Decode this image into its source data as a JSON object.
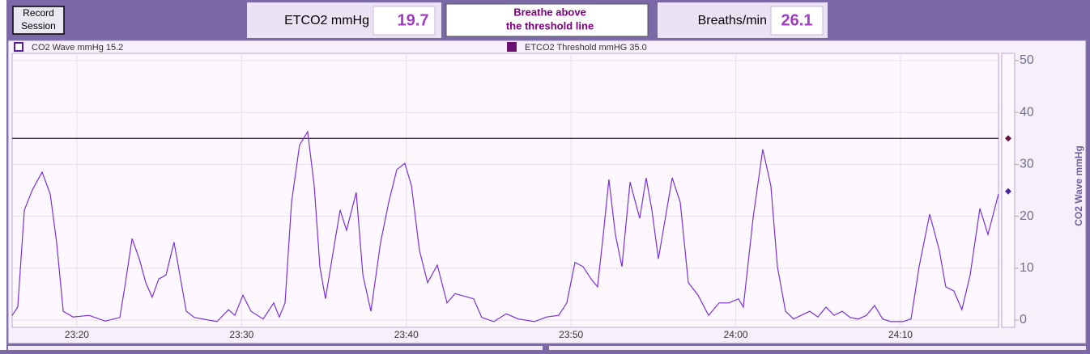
{
  "header": {
    "record_button": [
      "Record",
      "Session"
    ],
    "etco2": {
      "label": "ETCO2 mmHg",
      "value": 19.7
    },
    "message": [
      "Breathe above",
      "the threshold line"
    ],
    "breaths": {
      "label": "Breaths/min",
      "value": 26.1
    }
  },
  "chart_data": {
    "type": "line",
    "ylabel": "CO2 Wave mmHg",
    "legend": [
      "CO2 Wave mmHg 15.2",
      "ETCO2 Threshold mmHG 35.0"
    ],
    "legend_colors": [
      "#5b1aa8",
      "#6a1070"
    ],
    "threshold": 35,
    "threshold_color": "#4a1050",
    "side_markers": [
      35,
      24.8
    ],
    "side_marker_colors": [
      "#6a1040",
      "#4a2aa0"
    ],
    "xlim": [
      1396.07,
      1455.95
    ],
    "xticks": [
      {
        "value": 1400,
        "label": "23:20"
      },
      {
        "value": 1410,
        "label": "23:30"
      },
      {
        "value": 1420,
        "label": "23:40"
      },
      {
        "value": 1430,
        "label": "23:50"
      },
      {
        "value": 1440,
        "label": "24:00"
      },
      {
        "value": 1450,
        "label": "24:10"
      }
    ],
    "ylim": [
      -1.4,
      51.4
    ],
    "yticks": [
      0,
      10,
      20,
      30,
      40,
      50
    ],
    "grid": true,
    "series": [
      {
        "name": "CO2 Wave mmHg",
        "color": "#7b2fe0",
        "x": [
          1396.07,
          1396.41,
          1396.81,
          1397.3,
          1397.89,
          1398.38,
          1398.77,
          1399.17,
          1399.76,
          1400.74,
          1401.72,
          1402.61,
          1402.95,
          1403.35,
          1403.79,
          1404.18,
          1404.57,
          1404.97,
          1405.41,
          1405.9,
          1406.25,
          1406.64,
          1407.13,
          1408.51,
          1409.2,
          1409.59,
          1410.08,
          1410.57,
          1411.31,
          1411.95,
          1412.29,
          1412.64,
          1413.03,
          1413.52,
          1414.01,
          1414.41,
          1414.75,
          1415.09,
          1415.49,
          1415.98,
          1416.37,
          1416.96,
          1417.36,
          1417.85,
          1418.44,
          1418.93,
          1419.42,
          1419.91,
          1420.31,
          1420.8,
          1421.29,
          1421.88,
          1422.47,
          1422.96,
          1424.09,
          1424.58,
          1425.32,
          1426.06,
          1426.8,
          1427.78,
          1428.52,
          1429.25,
          1429.74,
          1430.24,
          1430.73,
          1431.22,
          1431.61,
          1431.96,
          1432.3,
          1432.69,
          1433.09,
          1433.58,
          1434.17,
          1434.56,
          1434.91,
          1435.3,
          1435.64,
          1436.14,
          1436.63,
          1437.12,
          1437.71,
          1438.35,
          1438.99,
          1439.58,
          1440.17,
          1440.46,
          1441.05,
          1441.64,
          1442.13,
          1442.53,
          1443.02,
          1443.51,
          1444.49,
          1444.98,
          1445.48,
          1445.97,
          1446.46,
          1446.95,
          1447.44,
          1447.93,
          1448.43,
          1448.92,
          1449.41,
          1450.15,
          1450.64,
          1451.13,
          1451.77,
          1452.36,
          1452.75,
          1453.24,
          1453.73,
          1454.23,
          1454.82,
          1455.31,
          1455.95
        ],
        "values": [
          0.9,
          2.5,
          21.2,
          25.1,
          28.5,
          24.3,
          15.0,
          1.7,
          0.6,
          0.9,
          -0.2,
          0.5,
          7.2,
          15.7,
          11.8,
          7.2,
          4.4,
          7.9,
          8.7,
          15.0,
          8.7,
          1.7,
          0.5,
          -0.3,
          2.0,
          0.9,
          4.8,
          1.7,
          0.2,
          3.3,
          0.6,
          3.3,
          22.7,
          33.7,
          36.3,
          25.9,
          10.3,
          4.1,
          11.8,
          21.2,
          17.3,
          24.6,
          8.7,
          1.7,
          15.0,
          22.7,
          29.0,
          30.2,
          25.9,
          13.4,
          7.2,
          10.6,
          3.3,
          5.1,
          4.1,
          0.5,
          -0.3,
          1.2,
          0.2,
          -0.3,
          0.6,
          0.9,
          3.3,
          11.1,
          10.3,
          7.9,
          6.4,
          16.5,
          27.1,
          16.5,
          10.3,
          26.6,
          19.6,
          27.4,
          21.2,
          11.8,
          18.1,
          27.4,
          22.7,
          7.2,
          4.8,
          0.9,
          3.3,
          3.3,
          4.1,
          2.5,
          19.6,
          32.9,
          25.9,
          10.3,
          1.7,
          0.2,
          1.7,
          0.6,
          2.5,
          0.9,
          1.7,
          0.5,
          0.2,
          0.9,
          2.8,
          0.2,
          -0.3,
          -0.3,
          0.2,
          10.3,
          20.4,
          13.4,
          6.4,
          5.6,
          2.0,
          8.7,
          21.5,
          16.5,
          24.3
        ]
      }
    ]
  }
}
